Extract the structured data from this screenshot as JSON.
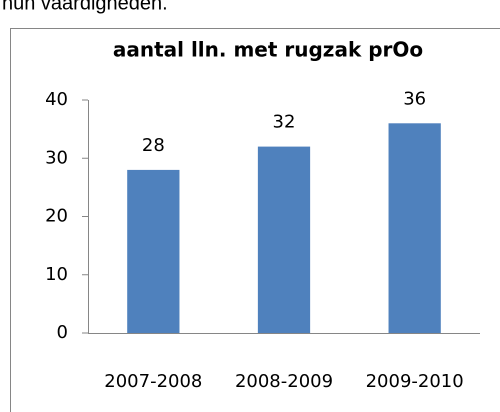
{
  "text": "hun vaardigheden.",
  "chart_data": {
    "type": "bar",
    "title": "aantal lln. met rugzak prOo",
    "categories": [
      "2007-2008",
      "2008-2009",
      "2009-2010"
    ],
    "values": [
      28,
      32,
      36
    ],
    "color": "#4f81bd",
    "ylim": [
      0,
      40
    ],
    "yticks": [
      0,
      10,
      20,
      30,
      40
    ],
    "grid": false,
    "data_labels": true
  }
}
